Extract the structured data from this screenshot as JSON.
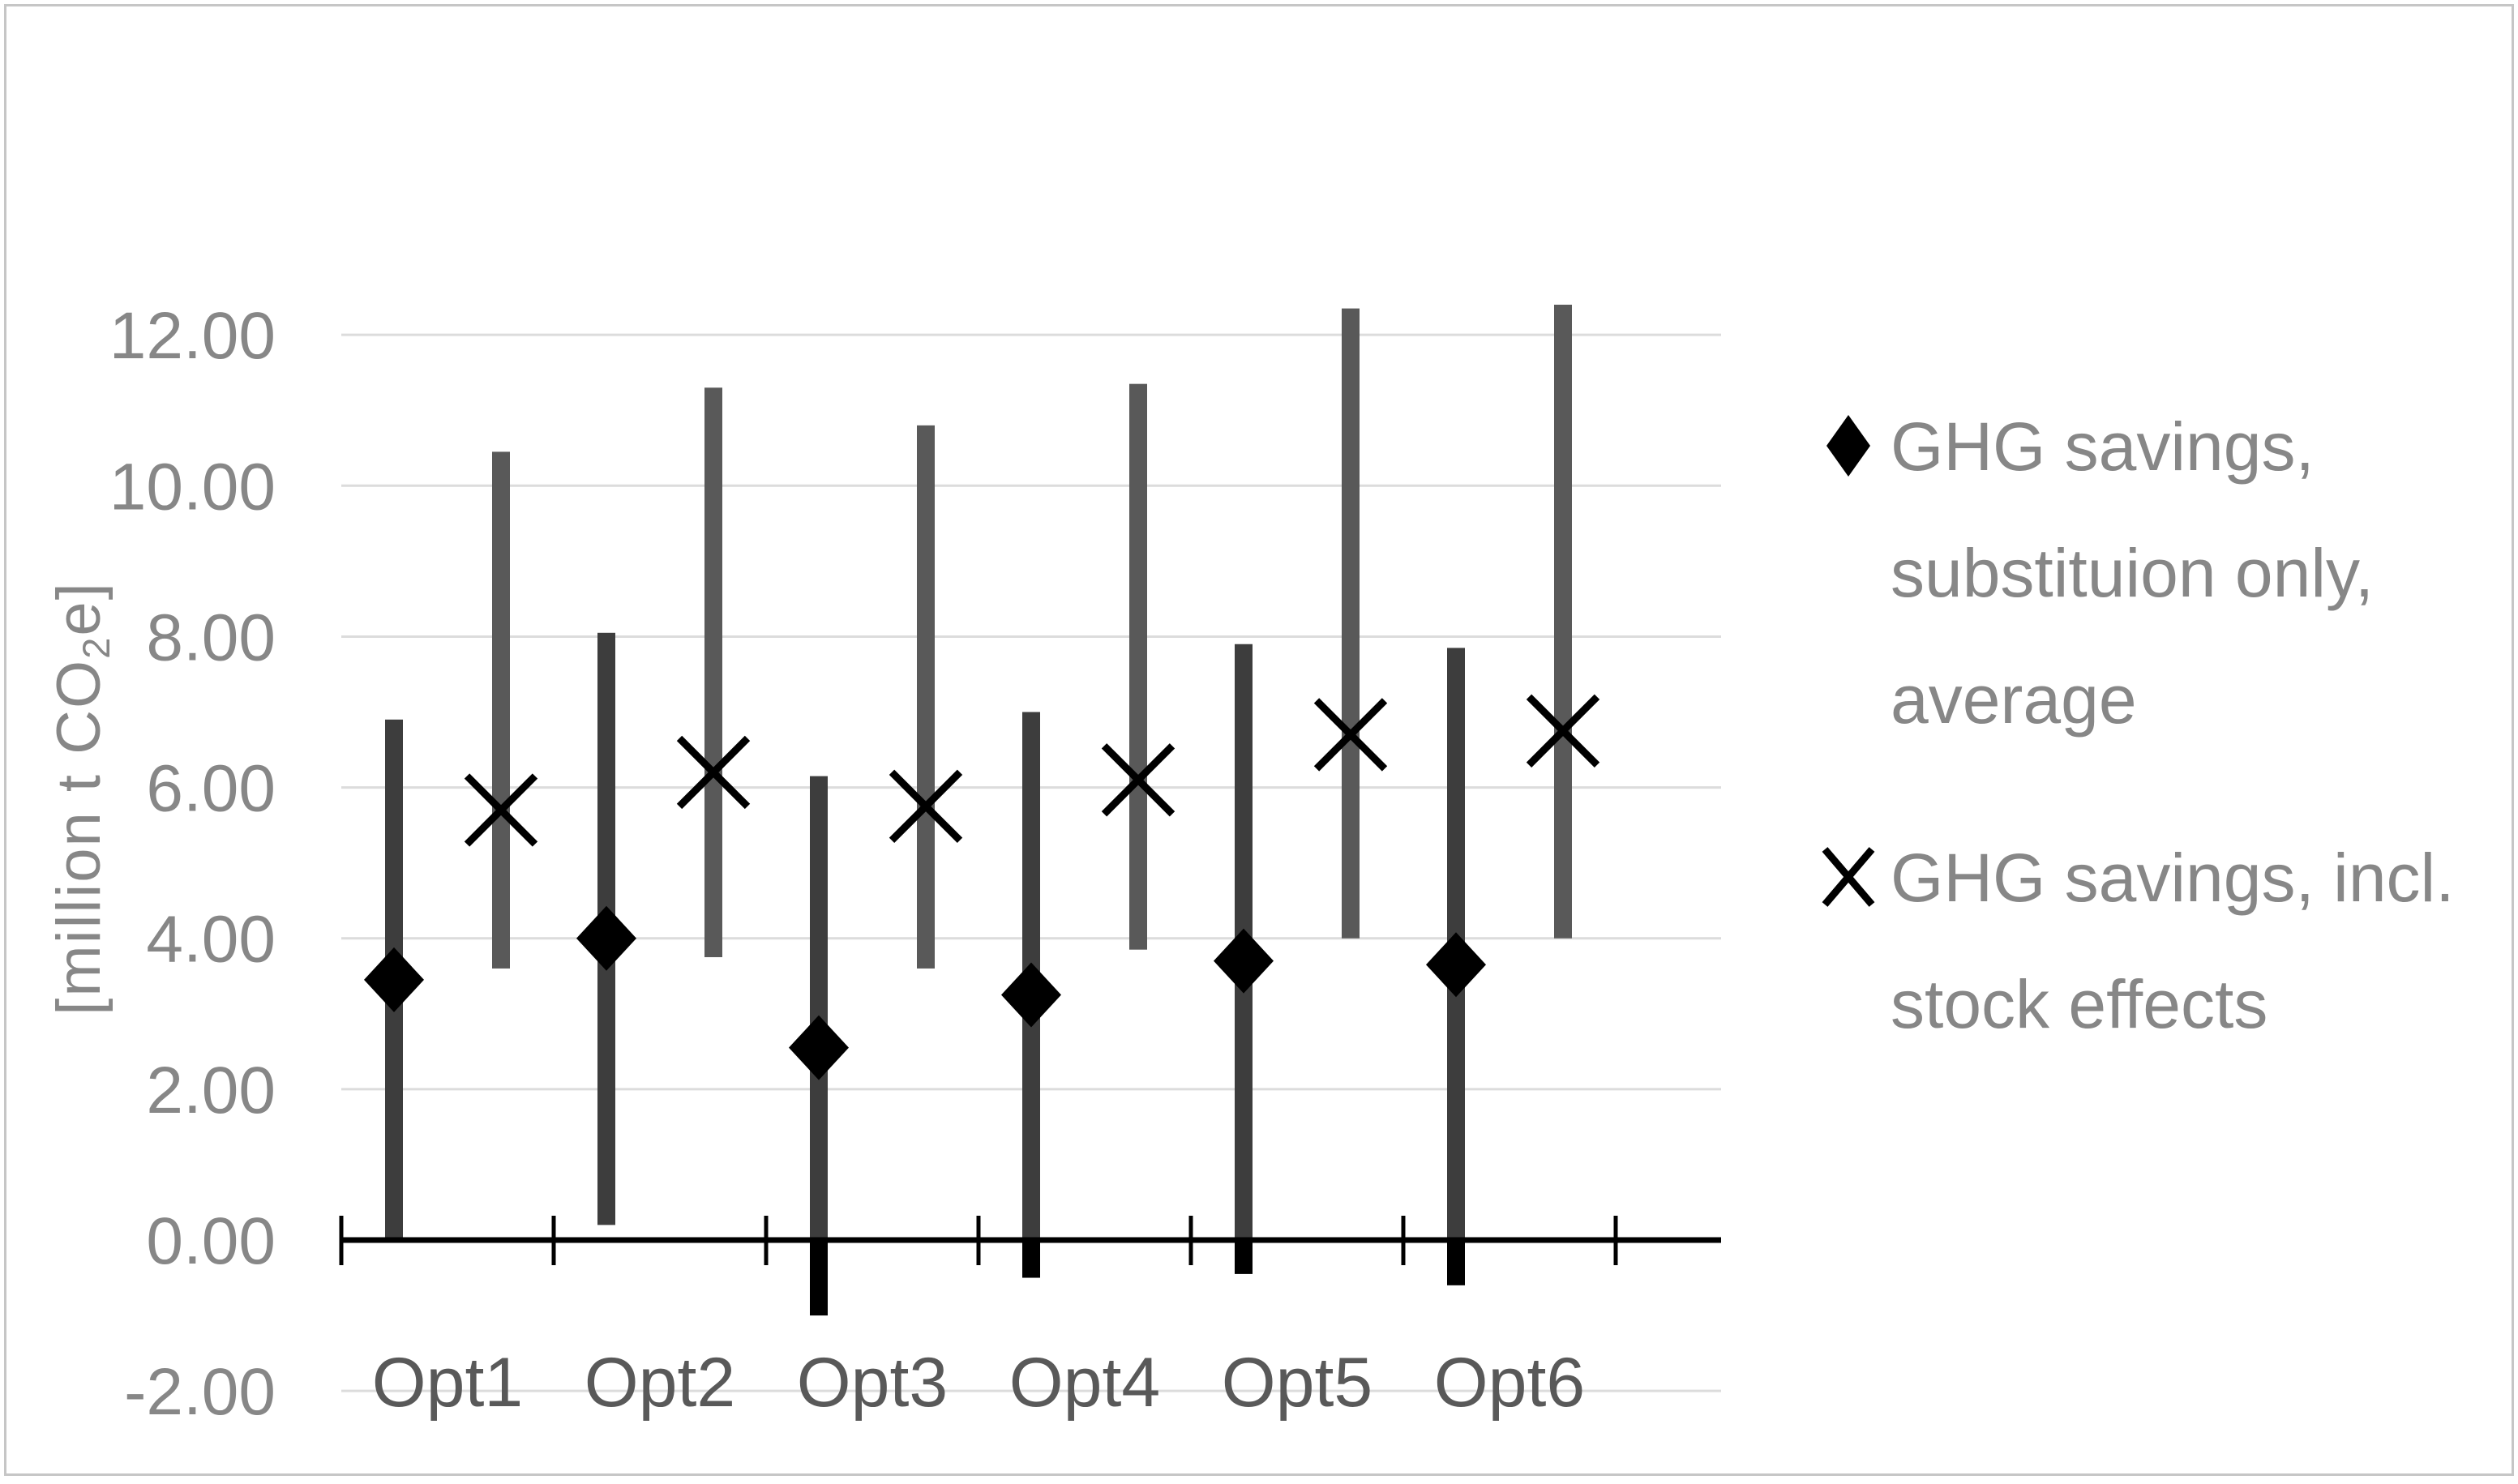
{
  "chart_data": {
    "type": "scatter",
    "description": "High-low error bar chart of GHG savings per option",
    "categories": [
      "Opt1",
      "Opt2",
      "Opt3",
      "Opt4",
      "Opt5",
      "Opt6"
    ],
    "series": [
      {
        "name": "GHG savings, substituion only, average",
        "marker": "diamond",
        "values": [
          3.45,
          4.0,
          2.55,
          3.25,
          3.7,
          3.65
        ],
        "error_low": [
          0.0,
          0.2,
          -1.0,
          -0.5,
          -0.45,
          -0.6
        ],
        "error_high": [
          6.9,
          8.05,
          6.15,
          7.0,
          7.9,
          7.85
        ]
      },
      {
        "name": "GHG savings, incl. stock effects",
        "marker": "x",
        "values": [
          5.7,
          6.2,
          5.75,
          6.1,
          6.7,
          6.75
        ],
        "error_low": [
          3.6,
          3.75,
          3.6,
          3.85,
          4.0,
          4.0
        ],
        "error_high": [
          10.45,
          11.3,
          10.8,
          11.35,
          12.35,
          12.4
        ]
      }
    ],
    "title": "",
    "xlabel": "",
    "ylabel": "[million t CO2e]",
    "ylabel_parts": {
      "pre": "[million t CO",
      "sub": "2",
      "post": "e]"
    },
    "ylim": [
      -2,
      12
    ],
    "ytick_step": 2,
    "yticks": [
      {
        "value": 12,
        "label": "12.00"
      },
      {
        "value": 10,
        "label": "10.00"
      },
      {
        "value": 8,
        "label": "8.00"
      },
      {
        "value": 6,
        "label": "6.00"
      },
      {
        "value": 4,
        "label": "4.00"
      },
      {
        "value": 2,
        "label": "2.00"
      },
      {
        "value": 0,
        "label": "0.00"
      },
      {
        "value": -2,
        "label": "-2.00"
      }
    ],
    "grid": true,
    "legend_position": "right",
    "colors": {
      "bar_series1": "#3d3d3d",
      "bar_series2": "#595959",
      "bar_below_zero": "#000000",
      "marker": "#000000",
      "gridline": "#dcdcdc",
      "axis": "#000000",
      "ytick_label": "#878787",
      "xtick_label": "#595959",
      "legend_text": "#878787",
      "border": "#c6c6c6"
    }
  },
  "legend": {
    "items": [
      {
        "marker": "diamond-icon",
        "label": "GHG savings,\nsubstituion only,\naverage"
      },
      {
        "marker": "x-icon",
        "label": "GHG savings, incl.\nstock effects"
      }
    ]
  }
}
